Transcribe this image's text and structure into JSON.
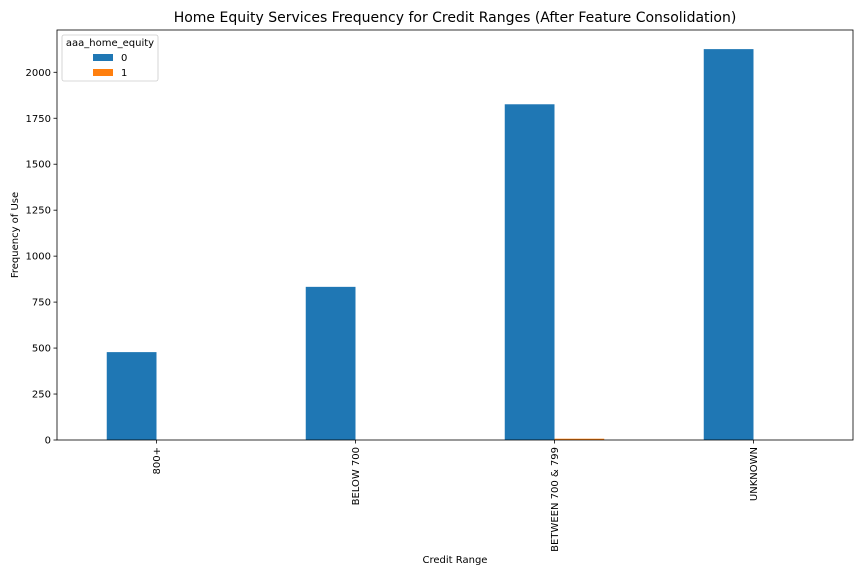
{
  "chart_data": {
    "type": "bar",
    "title": "Home Equity Services Frequency for Credit Ranges (After Feature Consolidation)",
    "xlabel": "Credit Range",
    "ylabel": "Frequency of Use",
    "categories": [
      "800+",
      "BELOW 700",
      "BETWEEN 700 & 799",
      "UNKNOWN"
    ],
    "series": [
      {
        "name": "0",
        "values": [
          478,
          833,
          1826,
          2126
        ]
      },
      {
        "name": "1",
        "values": [
          0,
          0,
          7,
          0
        ]
      }
    ],
    "ylim": [
      0,
      2230
    ],
    "yticks": [
      0,
      250,
      500,
      750,
      1000,
      1250,
      1500,
      1750,
      2000
    ],
    "ytick_labels": [
      "0",
      "250",
      "500",
      "750",
      "1000",
      "1250",
      "1500",
      "1750",
      "2000"
    ],
    "legend": {
      "title": "aaa_home_equity",
      "position": "top-left"
    },
    "grid": false,
    "colors": [
      "#1f77b4",
      "#ff7f0e"
    ]
  }
}
